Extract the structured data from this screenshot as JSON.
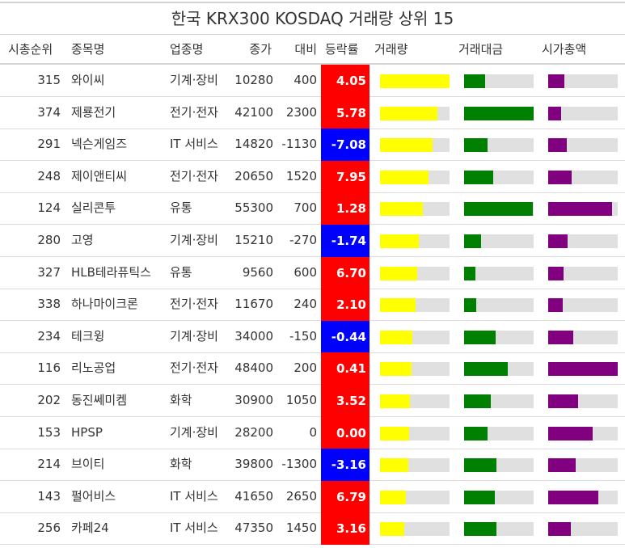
{
  "colors": {
    "positive_bg": "#ff0000",
    "negative_bg": "#0000ff",
    "volume_bar": "#ffff00",
    "amount_bar": "#008000",
    "marketcap_bar": "#800080",
    "track": "#e0e0e0"
  },
  "chart_data": {
    "type": "table",
    "title": "한국 KRX300 KOSDAQ 거래량 상위 15",
    "columns": [
      "시총순위",
      "종목명",
      "업종명",
      "종가",
      "대비",
      "등락률",
      "거래량",
      "거래대금",
      "시가총액"
    ],
    "rows": [
      {
        "rank": "315",
        "name": "와이씨",
        "sector": "기계·장비",
        "close": "10280",
        "diff": "400",
        "rate": "4.05",
        "volume": 1.0,
        "amount": 0.3,
        "marketcap": 0.23
      },
      {
        "rank": "374",
        "name": "제룡전기",
        "sector": "전기·전자",
        "close": "42100",
        "diff": "2300",
        "rate": "5.78",
        "volume": 0.82,
        "amount": 1.0,
        "marketcap": 0.19
      },
      {
        "rank": "291",
        "name": "넥슨게임즈",
        "sector": "IT 서비스",
        "close": "14820",
        "diff": "-1130",
        "rate": "-7.08",
        "volume": 0.75,
        "amount": 0.34,
        "marketcap": 0.27
      },
      {
        "rank": "248",
        "name": "제이앤티씨",
        "sector": "전기·전자",
        "close": "20650",
        "diff": "1520",
        "rate": "7.95",
        "volume": 0.7,
        "amount": 0.42,
        "marketcap": 0.34
      },
      {
        "rank": "124",
        "name": "실리콘투",
        "sector": "유통",
        "close": "55300",
        "diff": "700",
        "rate": "1.28",
        "volume": 0.62,
        "amount": 0.99,
        "marketcap": 0.92
      },
      {
        "rank": "280",
        "name": "고영",
        "sector": "기계·장비",
        "close": "15210",
        "diff": "-270",
        "rate": "-1.74",
        "volume": 0.56,
        "amount": 0.24,
        "marketcap": 0.28
      },
      {
        "rank": "327",
        "name": "HLB테라퓨틱스",
        "sector": "유통",
        "close": "9560",
        "diff": "600",
        "rate": "6.70",
        "volume": 0.53,
        "amount": 0.16,
        "marketcap": 0.22
      },
      {
        "rank": "338",
        "name": "하나마이크론",
        "sector": "전기·전자",
        "close": "11670",
        "diff": "240",
        "rate": "2.10",
        "volume": 0.51,
        "amount": 0.18,
        "marketcap": 0.21
      },
      {
        "rank": "234",
        "name": "테크윙",
        "sector": "기계·장비",
        "close": "34000",
        "diff": "-150",
        "rate": "-0.44",
        "volume": 0.47,
        "amount": 0.45,
        "marketcap": 0.36
      },
      {
        "rank": "116",
        "name": "리노공업",
        "sector": "전기·전자",
        "close": "48400",
        "diff": "200",
        "rate": "0.41",
        "volume": 0.45,
        "amount": 0.63,
        "marketcap": 1.0
      },
      {
        "rank": "202",
        "name": "동진쎄미켐",
        "sector": "화학",
        "close": "30900",
        "diff": "1050",
        "rate": "3.52",
        "volume": 0.43,
        "amount": 0.38,
        "marketcap": 0.43
      },
      {
        "rank": "153",
        "name": "HPSP",
        "sector": "기계·장비",
        "close": "28200",
        "diff": "0",
        "rate": "0.00",
        "volume": 0.42,
        "amount": 0.34,
        "marketcap": 0.64
      },
      {
        "rank": "214",
        "name": "브이티",
        "sector": "화학",
        "close": "39800",
        "diff": "-1300",
        "rate": "-3.16",
        "volume": 0.41,
        "amount": 0.47,
        "marketcap": 0.4
      },
      {
        "rank": "143",
        "name": "펄어비스",
        "sector": "IT 서비스",
        "close": "41650",
        "diff": "2650",
        "rate": "6.79",
        "volume": 0.37,
        "amount": 0.44,
        "marketcap": 0.72
      },
      {
        "rank": "256",
        "name": "카페24",
        "sector": "IT 서비스",
        "close": "47350",
        "diff": "1450",
        "rate": "3.16",
        "volume": 0.35,
        "amount": 0.47,
        "marketcap": 0.32
      }
    ]
  }
}
